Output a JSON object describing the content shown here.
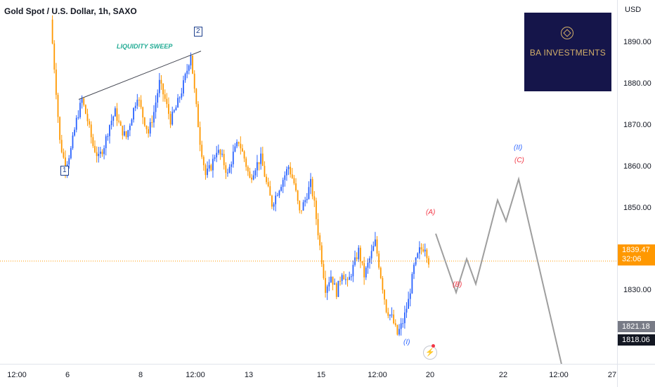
{
  "symbol": {
    "title": "Gold Spot / U.S. Dollar, 1h, SAXO"
  },
  "currency": "USD",
  "price_axis": {
    "ticks": [
      "1890.00",
      "1880.00",
      "1870.00",
      "1860.00",
      "1850.00",
      "1830.00"
    ],
    "current_price": "1839.47",
    "countdown": "32:06",
    "low_label_1": "1821.18",
    "low_label_2": "1818.06"
  },
  "time_axis": {
    "ticks": [
      "12:00",
      "6",
      "8",
      "12:00",
      "13",
      "15",
      "12:00",
      "20",
      "22",
      "12:00",
      "27"
    ]
  },
  "logo": {
    "text": "BA INVESTMENTS"
  },
  "annotations": {
    "liquidity_sweep": "LIQUIDITY SWEEP",
    "wave_1": "1",
    "wave_2": "2",
    "wave_i": "(I)",
    "wave_ii": "(II)",
    "wave_a": "(A)",
    "wave_b": "(B)",
    "wave_c": "(C)"
  },
  "colors": {
    "up": "#2962ff",
    "down": "#ff9800",
    "current_price": "#ff9800",
    "projection": "#9e9e9e",
    "logo_bg": "#15154a"
  },
  "icons": {
    "alert": "lightning-icon"
  },
  "chart_data": {
    "type": "candlestick",
    "price_range": [
      1812,
      1897
    ],
    "current_price": 1839.47,
    "price_path": [
      [
        0,
        1897
      ],
      [
        3,
        1880
      ],
      [
        5,
        1868
      ],
      [
        8,
        1862
      ],
      [
        11,
        1866
      ],
      [
        14,
        1873
      ],
      [
        17,
        1878
      ],
      [
        20,
        1873
      ],
      [
        23,
        1867
      ],
      [
        26,
        1864
      ],
      [
        29,
        1867
      ],
      [
        32,
        1872
      ],
      [
        35,
        1875
      ],
      [
        38,
        1871
      ],
      [
        41,
        1869
      ],
      [
        44,
        1874
      ],
      [
        47,
        1879
      ],
      [
        50,
        1874
      ],
      [
        53,
        1870
      ],
      [
        56,
        1875
      ],
      [
        59,
        1882
      ],
      [
        62,
        1878
      ],
      [
        65,
        1873
      ],
      [
        68,
        1876
      ],
      [
        71,
        1880
      ],
      [
        74,
        1885
      ],
      [
        76,
        1889
      ],
      [
        78,
        1880
      ],
      [
        81,
        1868
      ],
      [
        84,
        1860
      ],
      [
        87,
        1862
      ],
      [
        90,
        1866
      ],
      [
        93,
        1864
      ],
      [
        96,
        1860
      ],
      [
        99,
        1865
      ],
      [
        102,
        1868
      ],
      [
        105,
        1864
      ],
      [
        108,
        1859
      ],
      [
        111,
        1862
      ],
      [
        114,
        1864
      ],
      [
        117,
        1858
      ],
      [
        120,
        1853
      ],
      [
        123,
        1856
      ],
      [
        126,
        1859
      ],
      [
        129,
        1862
      ],
      [
        132,
        1858
      ],
      [
        135,
        1851
      ],
      [
        138,
        1854
      ],
      [
        141,
        1858
      ],
      [
        143,
        1853
      ],
      [
        146,
        1843
      ],
      [
        149,
        1833
      ],
      [
        152,
        1836
      ],
      [
        155,
        1832
      ],
      [
        158,
        1837
      ],
      [
        161,
        1834
      ],
      [
        164,
        1838
      ],
      [
        167,
        1842
      ],
      [
        170,
        1836
      ],
      [
        173,
        1840
      ],
      [
        176,
        1844
      ],
      [
        179,
        1836
      ],
      [
        182,
        1828
      ],
      [
        185,
        1826
      ],
      [
        188,
        1822
      ],
      [
        191,
        1825
      ],
      [
        194,
        1830
      ],
      [
        197,
        1838
      ],
      [
        200,
        1842
      ],
      [
        203,
        1843
      ],
      [
        205,
        1839.5
      ]
    ],
    "projection": [
      [
        1846,
        0
      ],
      [
        1832,
        1
      ],
      [
        1840,
        2
      ],
      [
        1834,
        3
      ],
      [
        1854,
        4
      ],
      [
        1849,
        5
      ],
      [
        1859,
        6
      ],
      [
        1812,
        7
      ]
    ],
    "trendline": {
      "from": 1878,
      "to": 1889.5
    }
  }
}
